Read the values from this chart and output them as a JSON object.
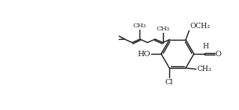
{
  "bg_color": "#ffffff",
  "line_color": "#1a1a1a",
  "line_width": 1.0,
  "font_size": 6.5,
  "fig_width": 3.05,
  "fig_height": 1.41,
  "dpi": 100,
  "xlim": [
    0,
    10.5
  ],
  "ylim": [
    0,
    4.6
  ]
}
